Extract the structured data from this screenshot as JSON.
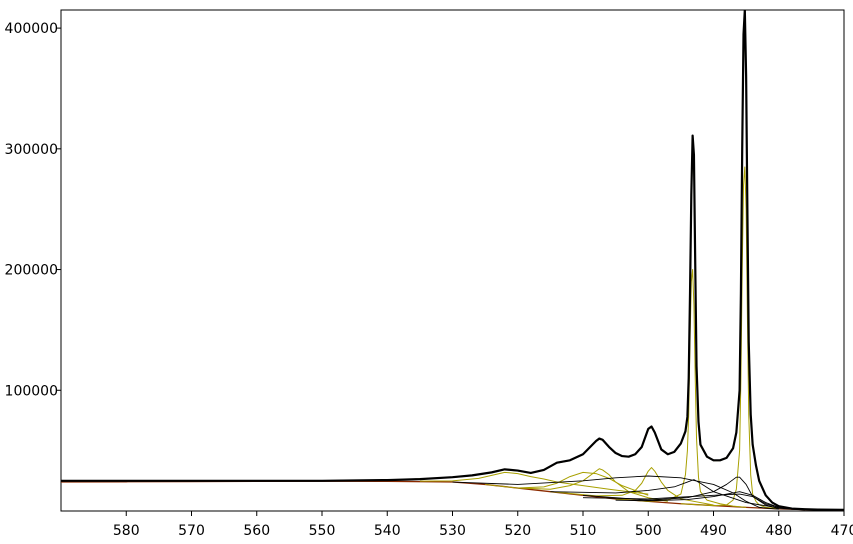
{
  "chart_data": {
    "type": "line",
    "title": "",
    "xlabel": "",
    "ylabel": "",
    "x_reversed": true,
    "xlim": [
      590,
      470
    ],
    "ylim": [
      0,
      415000
    ],
    "grid": false,
    "x_ticks": [
      580,
      570,
      560,
      550,
      540,
      530,
      520,
      510,
      500,
      490,
      480,
      470
    ],
    "x_tick_labels": [
      "580",
      "570",
      "560",
      "550",
      "540",
      "530",
      "520",
      "510",
      "500",
      "490",
      "480",
      "470"
    ],
    "y_ticks": [
      100000,
      200000,
      300000,
      400000
    ],
    "y_tick_labels": [
      "100000",
      "200000",
      "300000",
      "400000"
    ],
    "series": [
      {
        "role": "measured",
        "color": "#000000",
        "width": 2.2,
        "x": [
          590,
          580,
          570,
          560,
          550,
          540,
          535,
          530,
          527,
          524,
          522,
          520,
          518,
          516,
          514,
          512,
          510,
          508,
          507.5,
          507,
          506,
          505,
          504,
          503,
          502,
          501,
          500,
          499.5,
          499,
          498,
          497,
          496,
          495,
          494.3,
          494,
          493.8,
          493.6,
          493.4,
          493.2,
          493.0,
          492.8,
          492.6,
          492.3,
          492,
          491,
          490,
          489,
          488,
          487,
          486.5,
          486,
          485.8,
          485.6,
          485.4,
          485.2,
          485.0,
          484.8,
          484.6,
          484.3,
          484,
          483.5,
          483,
          482,
          481,
          480,
          478,
          476,
          474,
          472,
          470
        ],
        "y": [
          25000,
          25000,
          25000,
          25000,
          25000,
          25600,
          26400,
          28000,
          29500,
          32000,
          34500,
          33500,
          31500,
          34000,
          40000,
          42000,
          47000,
          58000,
          60000,
          59000,
          53000,
          48000,
          45500,
          45000,
          47000,
          53000,
          68000,
          70000,
          65000,
          51000,
          47000,
          49000,
          56000,
          66000,
          78000,
          110000,
          180000,
          262000,
          311000,
          295000,
          205000,
          120000,
          74000,
          55000,
          45000,
          42000,
          42000,
          44000,
          52000,
          65000,
          100000,
          180000,
          300000,
          395000,
          415000,
          360000,
          245000,
          140000,
          80000,
          55000,
          38000,
          25000,
          13000,
          7000,
          4000,
          2000,
          1500,
          1200,
          1100,
          1000
        ]
      },
      {
        "role": "fit-envelope",
        "color": "#a8a000",
        "width": 1.1,
        "x": [
          590,
          580,
          570,
          560,
          550,
          540,
          530,
          527,
          524,
          522,
          520,
          518,
          516,
          514,
          512,
          510,
          508,
          507.5,
          507,
          506,
          505,
          504,
          503,
          502,
          501,
          500,
          499.5,
          499,
          498,
          497,
          496,
          495,
          494.3,
          494,
          493.8,
          493.6,
          493.4,
          493.2,
          493.0,
          492.8,
          492.6,
          492.3,
          492,
          491,
          490,
          489,
          488,
          487,
          486.5,
          486,
          485.8,
          485.6,
          485.4,
          485.2,
          485.0,
          484.8,
          484.6,
          484.3,
          484,
          483.5,
          483,
          482,
          481,
          480,
          478,
          476,
          474,
          472,
          470
        ],
        "y": [
          25000,
          25000,
          25000,
          25000,
          25000,
          25500,
          27800,
          29200,
          31800,
          34200,
          33200,
          31300,
          33800,
          39700,
          41800,
          46800,
          57600,
          59500,
          58600,
          52700,
          47800,
          45300,
          44800,
          46800,
          52700,
          67500,
          69500,
          64600,
          50700,
          46800,
          48800,
          55700,
          65500,
          77000,
          108000,
          176000,
          256000,
          300000,
          280000,
          195000,
          116000,
          72000,
          54000,
          44800,
          41800,
          41800,
          43800,
          51700,
          64500,
          98000,
          175000,
          290000,
          380000,
          400000,
          350000,
          238000,
          136000,
          78000,
          54000,
          37500,
          24800,
          12900,
          6900,
          4000,
          2000,
          1500,
          1200,
          1100,
          1000
        ]
      },
      {
        "role": "background",
        "color": "#8b2a00",
        "width": 1.3,
        "x": [
          590,
          580,
          570,
          560,
          550,
          540,
          530,
          525,
          520,
          515,
          510,
          505,
          500,
          495,
          490,
          485,
          480,
          476,
          472,
          470
        ],
        "y": [
          24000,
          24200,
          24400,
          24600,
          24700,
          24600,
          24000,
          22000,
          19000,
          16000,
          13000,
          10000,
          8000,
          6000,
          4500,
          3000,
          1800,
          1200,
          900,
          800
        ]
      },
      {
        "role": "component",
        "color": "#a8a000",
        "width": 1.0,
        "x": [
          535,
          530,
          526,
          524,
          522,
          520,
          518,
          516,
          514,
          512,
          510,
          506,
          500
        ],
        "y": [
          24700,
          25000,
          27000,
          29500,
          32000,
          31000,
          28500,
          26500,
          24000,
          22500,
          21000,
          18000,
          14000
        ]
      },
      {
        "role": "component",
        "color": "#a8a000",
        "width": 1.0,
        "x": [
          525,
          520,
          516,
          514,
          512,
          510,
          508,
          506,
          504,
          500
        ],
        "y": [
          22000,
          19000,
          20000,
          23000,
          28500,
          32000,
          31000,
          27000,
          21000,
          13000
        ]
      },
      {
        "role": "component",
        "color": "#a8a000",
        "width": 1.0,
        "x": [
          520,
          515,
          512,
          510,
          508,
          507.5,
          507,
          506,
          505,
          503,
          500,
          497
        ],
        "y": [
          19000,
          18000,
          21000,
          25000,
          33000,
          35000,
          34000,
          30000,
          24000,
          16000,
          11000,
          8000
        ]
      },
      {
        "role": "component",
        "color": "#a8a000",
        "width": 1.0,
        "x": [
          515,
          508,
          504,
          502,
          501,
          500,
          499.5,
          499,
          498,
          497,
          495,
          490
        ],
        "y": [
          16000,
          12500,
          13000,
          17000,
          23000,
          33000,
          36000,
          33000,
          24000,
          17000,
          10000,
          5000
        ]
      },
      {
        "role": "component",
        "color": "#a8a000",
        "width": 1.0,
        "x": [
          505,
          500,
          497,
          495,
          494.3,
          494,
          493.8,
          493.6,
          493.4,
          493.2,
          493.0,
          492.8,
          492.6,
          492.3,
          492,
          491,
          489,
          487,
          485
        ],
        "y": [
          10000,
          8000,
          9000,
          14000,
          30000,
          50000,
          80000,
          140000,
          190000,
          200000,
          170000,
          110000,
          60000,
          28000,
          16000,
          9000,
          6000,
          4000,
          3000
        ]
      },
      {
        "role": "component",
        "color": "#a8a000",
        "width": 1.0,
        "x": [
          495,
          490,
          488,
          487,
          486.5,
          486,
          485.8,
          485.6,
          485.4,
          485.2,
          485.0,
          484.8,
          484.6,
          484.3,
          484,
          483.5,
          483,
          482,
          480
        ],
        "y": [
          6000,
          4500,
          5000,
          9000,
          18000,
          50000,
          110000,
          200000,
          270000,
          285000,
          250000,
          160000,
          80000,
          30000,
          14000,
          8000,
          5000,
          3000,
          2000
        ]
      },
      {
        "role": "component",
        "color": "#000000",
        "width": 0.9,
        "x": [
          530,
          520,
          510,
          505,
          500,
          495,
          490,
          487,
          485,
          483,
          480
        ],
        "y": [
          24000,
          22000,
          25000,
          27500,
          29000,
          27500,
          22000,
          15000,
          8000,
          3000,
          1500
        ]
      },
      {
        "role": "component",
        "color": "#000000",
        "width": 0.9,
        "x": [
          515,
          505,
          500,
          496,
          494,
          493,
          492,
          490,
          485,
          480
        ],
        "y": [
          16000,
          15000,
          17000,
          20000,
          24000,
          26000,
          23000,
          16000,
          7000,
          2500
        ]
      },
      {
        "role": "component",
        "color": "#000000",
        "width": 0.9,
        "x": [
          510,
          500,
          494,
          490,
          488,
          486.5,
          486,
          485,
          484,
          482,
          480,
          476
        ],
        "y": [
          13000,
          9000,
          11000,
          16000,
          22000,
          28000,
          28000,
          22000,
          12000,
          5000,
          2000,
          1000
        ]
      },
      {
        "role": "component",
        "color": "#000000",
        "width": 0.9,
        "x": [
          510,
          500,
          495,
          490,
          486,
          484,
          482,
          480,
          478
        ],
        "y": [
          11000,
          10000,
          11500,
          13000,
          14000,
          12000,
          6000,
          3000,
          1500
        ]
      },
      {
        "role": "component",
        "color": "#000000",
        "width": 0.9,
        "x": [
          505,
          500,
          494,
          490,
          486,
          484,
          482,
          480
        ],
        "y": [
          9000,
          8500,
          9500,
          12000,
          16000,
          13000,
          7000,
          3000
        ]
      }
    ]
  }
}
